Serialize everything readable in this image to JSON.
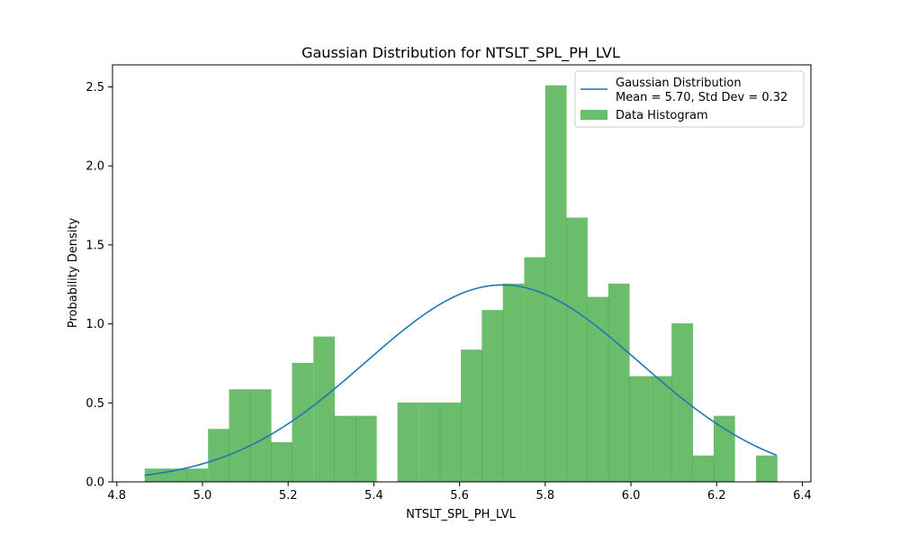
{
  "chart_data": {
    "type": "bar",
    "title": "Gaussian Distribution for NTSLT_SPL_PH_LVL",
    "xlabel": "NTSLT_SPL_PH_LVL",
    "ylabel": "Probability Density",
    "xlim": [
      4.79,
      6.42
    ],
    "ylim": [
      0,
      2.64
    ],
    "x_ticks": [
      4.8,
      5.0,
      5.2,
      5.4,
      5.6,
      5.8,
      6.0,
      6.2,
      6.4
    ],
    "x_tick_labels": [
      "4.8",
      "5.0",
      "5.2",
      "5.4",
      "5.6",
      "5.8",
      "6.0",
      "6.2",
      "6.4"
    ],
    "y_ticks": [
      0.0,
      0.5,
      1.0,
      1.5,
      2.0,
      2.5
    ],
    "y_tick_labels": [
      "0.0",
      "0.5",
      "1.0",
      "1.5",
      "2.0",
      "2.5"
    ],
    "grid": false,
    "legend_position": "top-right",
    "colors": {
      "histogram": "#2ca02c",
      "histogram_opacity": 0.7,
      "gaussian_line": "#1f77b4"
    },
    "series": [
      {
        "name": "Gaussian Distribution\nMean = 5.70, Std Dev = 0.32",
        "kind": "line",
        "mean": 5.7,
        "std": 0.32,
        "x_range": [
          4.865,
          6.34
        ]
      },
      {
        "name": "Data Histogram",
        "kind": "histogram",
        "bin_width": 0.0492,
        "bins": [
          {
            "x0": 4.865,
            "value": 0.084
          },
          {
            "x0": 4.914,
            "value": 0.084
          },
          {
            "x0": 4.963,
            "value": 0.084
          },
          {
            "x0": 5.013,
            "value": 0.335
          },
          {
            "x0": 5.062,
            "value": 0.586
          },
          {
            "x0": 5.111,
            "value": 0.586
          },
          {
            "x0": 5.16,
            "value": 0.251
          },
          {
            "x0": 5.209,
            "value": 0.753
          },
          {
            "x0": 5.259,
            "value": 0.92
          },
          {
            "x0": 5.308,
            "value": 0.418
          },
          {
            "x0": 5.357,
            "value": 0.418
          },
          {
            "x0": 5.406,
            "value": 0.0
          },
          {
            "x0": 5.455,
            "value": 0.502
          },
          {
            "x0": 5.505,
            "value": 0.502
          },
          {
            "x0": 5.554,
            "value": 0.502
          },
          {
            "x0": 5.603,
            "value": 0.837
          },
          {
            "x0": 5.652,
            "value": 1.088
          },
          {
            "x0": 5.701,
            "value": 1.255
          },
          {
            "x0": 5.751,
            "value": 1.422
          },
          {
            "x0": 5.8,
            "value": 2.51
          },
          {
            "x0": 5.849,
            "value": 1.673
          },
          {
            "x0": 5.898,
            "value": 1.171
          },
          {
            "x0": 5.947,
            "value": 1.255
          },
          {
            "x0": 5.996,
            "value": 0.669
          },
          {
            "x0": 6.046,
            "value": 0.669
          },
          {
            "x0": 6.095,
            "value": 1.004
          },
          {
            "x0": 6.144,
            "value": 0.167
          },
          {
            "x0": 6.193,
            "value": 0.418
          },
          {
            "x0": 6.242,
            "value": 0.0
          },
          {
            "x0": 6.292,
            "value": 0.167
          }
        ]
      }
    ]
  }
}
